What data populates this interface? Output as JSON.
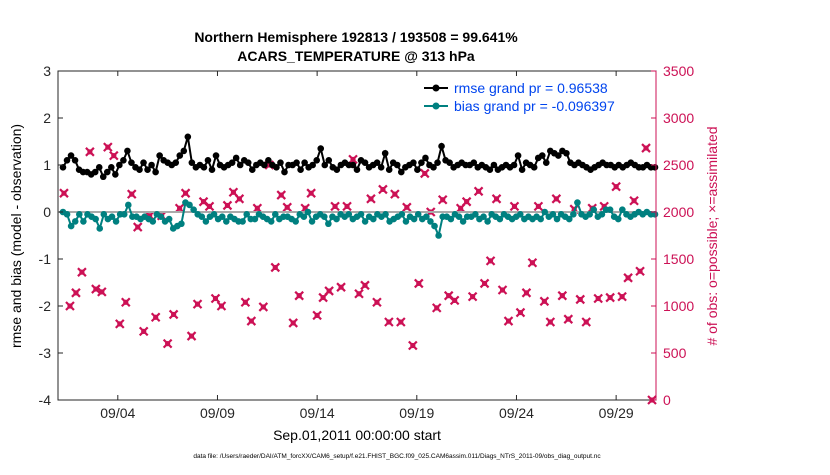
{
  "chart_data": {
    "type": "line",
    "title_line1": "Northern Hemisphere 192813 / 193508 = 99.641%",
    "title_line2": "ACARS_TEMPERATURE @ 313 hPa",
    "xlabel": "Sep.01,2011 00:00:00 start",
    "ylabel_left": "rmse and bias (model - observation)",
    "ylabel_right": "# of obs: o=possible; ×=assimilated",
    "footer": "data file: /Users/raeder/DAI/ATM_forcXX/CAM6_setup/f.e21.FHIST_BGC.f09_025.CAM6assim.011/Diags_NTrS_2011-09/obs_diag_output.nc",
    "xlim": [
      1,
      31
    ],
    "ylim_left": [
      -4,
      3
    ],
    "ylim_right": [
      0,
      3500
    ],
    "x_ticks": [
      {
        "x": 4,
        "label": "09/04"
      },
      {
        "x": 9,
        "label": "09/09"
      },
      {
        "x": 14,
        "label": "09/14"
      },
      {
        "x": 19,
        "label": "09/19"
      },
      {
        "x": 24,
        "label": "09/24"
      },
      {
        "x": 29,
        "label": "09/29"
      }
    ],
    "y_ticks_left": [
      {
        "v": 3,
        "label": "3"
      },
      {
        "v": 2,
        "label": "2"
      },
      {
        "v": 1,
        "label": "1"
      },
      {
        "v": 0,
        "label": "0"
      },
      {
        "v": -1,
        "label": "-1"
      },
      {
        "v": -2,
        "label": "-2"
      },
      {
        "v": -3,
        "label": "-3"
      },
      {
        "v": -4,
        "label": "-4"
      }
    ],
    "y_ticks_right": [
      {
        "v": 3500,
        "label": "3500"
      },
      {
        "v": 3000,
        "label": "3000"
      },
      {
        "v": 2500,
        "label": "2500"
      },
      {
        "v": 2000,
        "label": "2000"
      },
      {
        "v": 1500,
        "label": "1500"
      },
      {
        "v": 1000,
        "label": "1000"
      },
      {
        "v": 500,
        "label": "500"
      },
      {
        "v": 0,
        "label": "0"
      }
    ],
    "legend": [
      {
        "name": "rmse grand pr = 0.96538",
        "color": "#000000"
      },
      {
        "name": "bias grand pr = -0.096397",
        "color": "#008080"
      }
    ],
    "legend_text_color": "#0044ee",
    "colors": {
      "rmse": "#000000",
      "bias": "#008080",
      "obs": "#cc1155",
      "zero_line": "#aaaaaa",
      "right_axis": "#cc1155"
    },
    "series": [
      {
        "name": "rmse",
        "values": [
          0.95,
          1.1,
          1.2,
          1.1,
          0.9,
          0.85,
          0.85,
          0.8,
          0.85,
          0.95,
          0.75,
          0.85,
          0.95,
          0.8,
          1.0,
          1.1,
          1.3,
          1.05,
          0.95,
          0.9,
          1.05,
          0.9,
          1.0,
          0.85,
          1.2,
          1.1,
          1.05,
          1.0,
          1.05,
          1.2,
          1.3,
          1.6,
          1.05,
          0.95,
          1.0,
          0.95,
          1.1,
          0.9,
          1.2,
          1.0,
          0.95,
          1.0,
          1.05,
          1.15,
          1.0,
          1.1,
          1.05,
          0.9,
          1.0,
          1.05,
          1.0,
          1.1,
          1.0,
          0.95,
          1.05,
          0.85,
          1.0,
          1.0,
          1.05,
          0.9,
          1.05,
          0.95,
          1.0,
          1.1,
          1.35,
          1.0,
          1.1,
          0.95,
          0.9,
          1.0,
          1.05,
          1.0,
          1.0,
          0.9,
          1.1,
          1.05,
          0.95,
          1.0,
          1.05,
          0.95,
          1.25,
          0.9,
          1.05,
          1.0,
          0.85,
          0.95,
          1.0,
          1.05,
          0.9,
          1.05,
          1.15,
          1.0,
          0.95,
          1.05,
          1.4,
          1.1,
          1.05,
          0.95,
          1.0,
          1.05,
          1.0,
          1.0,
          1.05,
          0.95,
          1.0,
          0.95,
          0.9,
          1.0,
          0.9,
          0.95,
          1.0,
          0.95,
          1.0,
          1.2,
          0.9,
          1.05,
          1.0,
          0.95,
          1.15,
          1.2,
          1.05,
          1.3,
          1.25,
          1.2,
          1.3,
          1.25,
          1.05,
          1.0,
          1.05,
          1.0,
          0.95,
          0.9,
          0.95,
          1.0,
          1.05,
          1.0,
          1.0,
          0.95,
          1.0,
          0.95,
          1.0,
          1.05,
          1.0,
          0.95,
          0.95,
          1.0,
          0.95,
          0.95
        ]
      },
      {
        "name": "bias",
        "values": [
          0.0,
          -0.05,
          -0.3,
          -0.2,
          -0.05,
          -0.2,
          -0.05,
          -0.1,
          -0.15,
          -0.35,
          -0.05,
          -0.15,
          -0.1,
          -0.2,
          -0.05,
          -0.05,
          0.15,
          -0.1,
          -0.1,
          -0.15,
          -0.1,
          -0.15,
          -0.2,
          -0.05,
          -0.1,
          -0.2,
          -0.15,
          -0.35,
          -0.3,
          -0.25,
          0.2,
          0.15,
          0.05,
          -0.05,
          -0.1,
          -0.2,
          -0.1,
          -0.05,
          -0.15,
          -0.1,
          -0.2,
          -0.1,
          -0.15,
          -0.2,
          -0.2,
          -0.05,
          -0.15,
          -0.15,
          -0.05,
          -0.1,
          -0.15,
          -0.2,
          -0.05,
          -0.15,
          -0.1,
          -0.1,
          -0.15,
          -0.2,
          -0.05,
          -0.1,
          0.0,
          -0.2,
          -0.1,
          -0.05,
          -0.1,
          -0.25,
          -0.1,
          -0.15,
          -0.05,
          -0.1,
          -0.05,
          -0.15,
          -0.1,
          -0.05,
          -0.2,
          -0.1,
          -0.15,
          -0.05,
          -0.1,
          -0.05,
          -0.2,
          -0.15,
          -0.1,
          -0.05,
          -0.2,
          -0.1,
          -0.15,
          -0.05,
          -0.15,
          -0.1,
          -0.2,
          -0.3,
          -0.5,
          -0.1,
          -0.1,
          -0.15,
          -0.05,
          -0.1,
          -0.2,
          -0.1,
          -0.1,
          -0.05,
          -0.15,
          -0.1,
          -0.2,
          -0.05,
          -0.1,
          -0.15,
          -0.05,
          -0.1,
          -0.15,
          -0.1,
          -0.05,
          -0.15,
          -0.1,
          -0.15,
          -0.1,
          -0.15,
          0.0,
          -0.1,
          -0.05,
          -0.15,
          -0.05,
          -0.1,
          -0.15,
          -0.05,
          0.2,
          -0.05,
          -0.1,
          -0.05,
          0.05,
          -0.1,
          -0.05,
          0.05,
          0.05,
          -0.1,
          -0.15,
          0.05,
          -0.05,
          -0.1,
          -0.05,
          0.0,
          -0.05,
          0.0,
          -0.05,
          -0.05
        ]
      }
    ],
    "obs_counts": [
      {
        "x": 1.3,
        "v": 2200
      },
      {
        "x": 1.6,
        "v": 1000
      },
      {
        "x": 1.9,
        "v": 1140
      },
      {
        "x": 2.2,
        "v": 1360
      },
      {
        "x": 2.6,
        "v": 2640
      },
      {
        "x": 2.9,
        "v": 1180
      },
      {
        "x": 3.2,
        "v": 1150
      },
      {
        "x": 3.5,
        "v": 2690
      },
      {
        "x": 3.8,
        "v": 2600
      },
      {
        "x": 4.1,
        "v": 810
      },
      {
        "x": 4.4,
        "v": 1040
      },
      {
        "x": 4.7,
        "v": 2190
      },
      {
        "x": 5.0,
        "v": 1840
      },
      {
        "x": 5.3,
        "v": 730
      },
      {
        "x": 5.6,
        "v": 1960
      },
      {
        "x": 5.9,
        "v": 880
      },
      {
        "x": 6.2,
        "v": 1960
      },
      {
        "x": 6.5,
        "v": 600
      },
      {
        "x": 6.8,
        "v": 910
      },
      {
        "x": 7.1,
        "v": 2040
      },
      {
        "x": 7.4,
        "v": 2200
      },
      {
        "x": 7.7,
        "v": 680
      },
      {
        "x": 8.0,
        "v": 1020
      },
      {
        "x": 8.3,
        "v": 2110
      },
      {
        "x": 8.6,
        "v": 2060
      },
      {
        "x": 8.9,
        "v": 1080
      },
      {
        "x": 9.2,
        "v": 1000
      },
      {
        "x": 9.5,
        "v": 2070
      },
      {
        "x": 9.8,
        "v": 2210
      },
      {
        "x": 10.1,
        "v": 2140
      },
      {
        "x": 10.4,
        "v": 1040
      },
      {
        "x": 10.7,
        "v": 840
      },
      {
        "x": 11.0,
        "v": 2040
      },
      {
        "x": 11.3,
        "v": 990
      },
      {
        "x": 11.6,
        "v": 2500
      },
      {
        "x": 11.9,
        "v": 1410
      },
      {
        "x": 12.2,
        "v": 2180
      },
      {
        "x": 12.5,
        "v": 2050
      },
      {
        "x": 12.8,
        "v": 820
      },
      {
        "x": 13.1,
        "v": 1110
      },
      {
        "x": 13.4,
        "v": 2040
      },
      {
        "x": 13.7,
        "v": 2200
      },
      {
        "x": 14.0,
        "v": 900
      },
      {
        "x": 14.3,
        "v": 1090
      },
      {
        "x": 14.6,
        "v": 1160
      },
      {
        "x": 14.9,
        "v": 2060
      },
      {
        "x": 15.2,
        "v": 1200
      },
      {
        "x": 15.5,
        "v": 2060
      },
      {
        "x": 15.8,
        "v": 2560
      },
      {
        "x": 16.1,
        "v": 1130
      },
      {
        "x": 16.4,
        "v": 1220
      },
      {
        "x": 16.7,
        "v": 2140
      },
      {
        "x": 17.0,
        "v": 1040
      },
      {
        "x": 17.3,
        "v": 2240
      },
      {
        "x": 17.6,
        "v": 830
      },
      {
        "x": 17.9,
        "v": 2190
      },
      {
        "x": 18.2,
        "v": 830
      },
      {
        "x": 18.5,
        "v": 2050
      },
      {
        "x": 18.8,
        "v": 580
      },
      {
        "x": 19.1,
        "v": 1240
      },
      {
        "x": 19.4,
        "v": 2410
      },
      {
        "x": 19.7,
        "v": 2000
      },
      {
        "x": 20.0,
        "v": 980
      },
      {
        "x": 20.3,
        "v": 2130
      },
      {
        "x": 20.6,
        "v": 1110
      },
      {
        "x": 20.9,
        "v": 1060
      },
      {
        "x": 21.2,
        "v": 2040
      },
      {
        "x": 21.5,
        "v": 2110
      },
      {
        "x": 21.8,
        "v": 1100
      },
      {
        "x": 22.1,
        "v": 2220
      },
      {
        "x": 22.4,
        "v": 1240
      },
      {
        "x": 22.7,
        "v": 1480
      },
      {
        "x": 23.0,
        "v": 2140
      },
      {
        "x": 23.3,
        "v": 1170
      },
      {
        "x": 23.6,
        "v": 840
      },
      {
        "x": 23.9,
        "v": 2060
      },
      {
        "x": 24.2,
        "v": 930
      },
      {
        "x": 24.5,
        "v": 1140
      },
      {
        "x": 24.8,
        "v": 1460
      },
      {
        "x": 25.1,
        "v": 2060
      },
      {
        "x": 25.4,
        "v": 1050
      },
      {
        "x": 25.7,
        "v": 830
      },
      {
        "x": 26.0,
        "v": 2140
      },
      {
        "x": 26.3,
        "v": 1110
      },
      {
        "x": 26.6,
        "v": 860
      },
      {
        "x": 26.9,
        "v": 2030
      },
      {
        "x": 27.2,
        "v": 1070
      },
      {
        "x": 27.5,
        "v": 830
      },
      {
        "x": 27.8,
        "v": 2040
      },
      {
        "x": 28.1,
        "v": 1080
      },
      {
        "x": 28.4,
        "v": 2060
      },
      {
        "x": 28.7,
        "v": 1090
      },
      {
        "x": 29.0,
        "v": 2270
      },
      {
        "x": 29.3,
        "v": 1100
      },
      {
        "x": 29.6,
        "v": 1300
      },
      {
        "x": 29.9,
        "v": 2120
      },
      {
        "x": 30.2,
        "v": 1370
      },
      {
        "x": 30.5,
        "v": 2680
      },
      {
        "x": 30.8,
        "v": 0
      }
    ]
  }
}
